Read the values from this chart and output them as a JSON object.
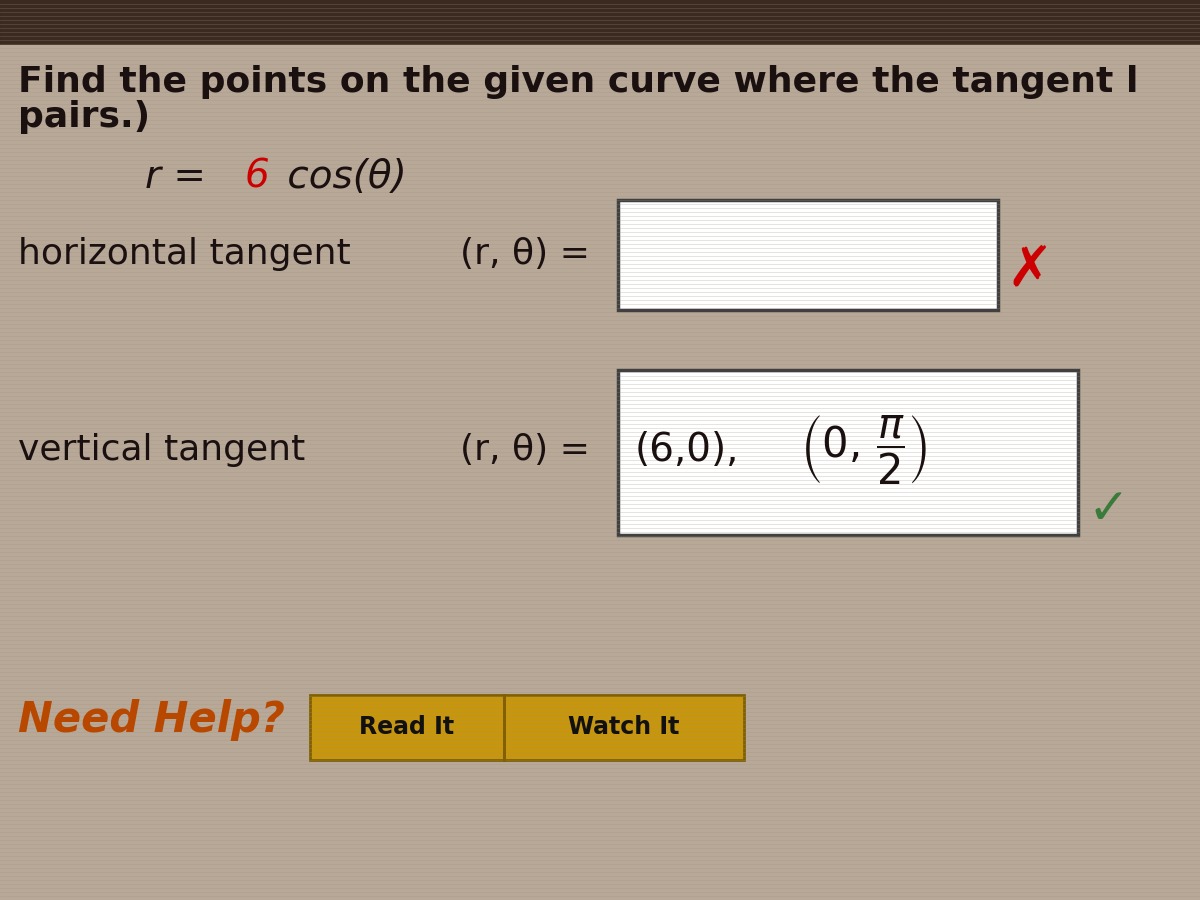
{
  "bg_color": "#b8a898",
  "scanline_color": "#a09080",
  "title_line1": "Find the points on the given curve where the tangent l",
  "title_line2": "pairs.)",
  "equation_prefix": "r = ",
  "equation_num": "6",
  "equation_suffix": " cos(θ)",
  "horiz_label": "horizontal tangent",
  "horiz_rtheta": "(r, θ) =",
  "vert_label": "vertical tangent",
  "vert_rtheta": "(r, θ) =",
  "vert_answer1": "(6,0),",
  "need_help_text": "Need Help?",
  "need_help_color": "#b84800",
  "read_it": "Read It",
  "watch_it": "Watch It",
  "btn_face": "#c8960a",
  "btn_edge": "#806000",
  "text_color": "#1a1010",
  "red_color": "#cc0000",
  "check_color": "#3a7a3a",
  "box_edge": "#404040",
  "top_bar_color": "#3a2a20",
  "title_fontsize": 26,
  "label_fontsize": 26,
  "eq_fontsize": 28,
  "answer_fontsize": 28
}
